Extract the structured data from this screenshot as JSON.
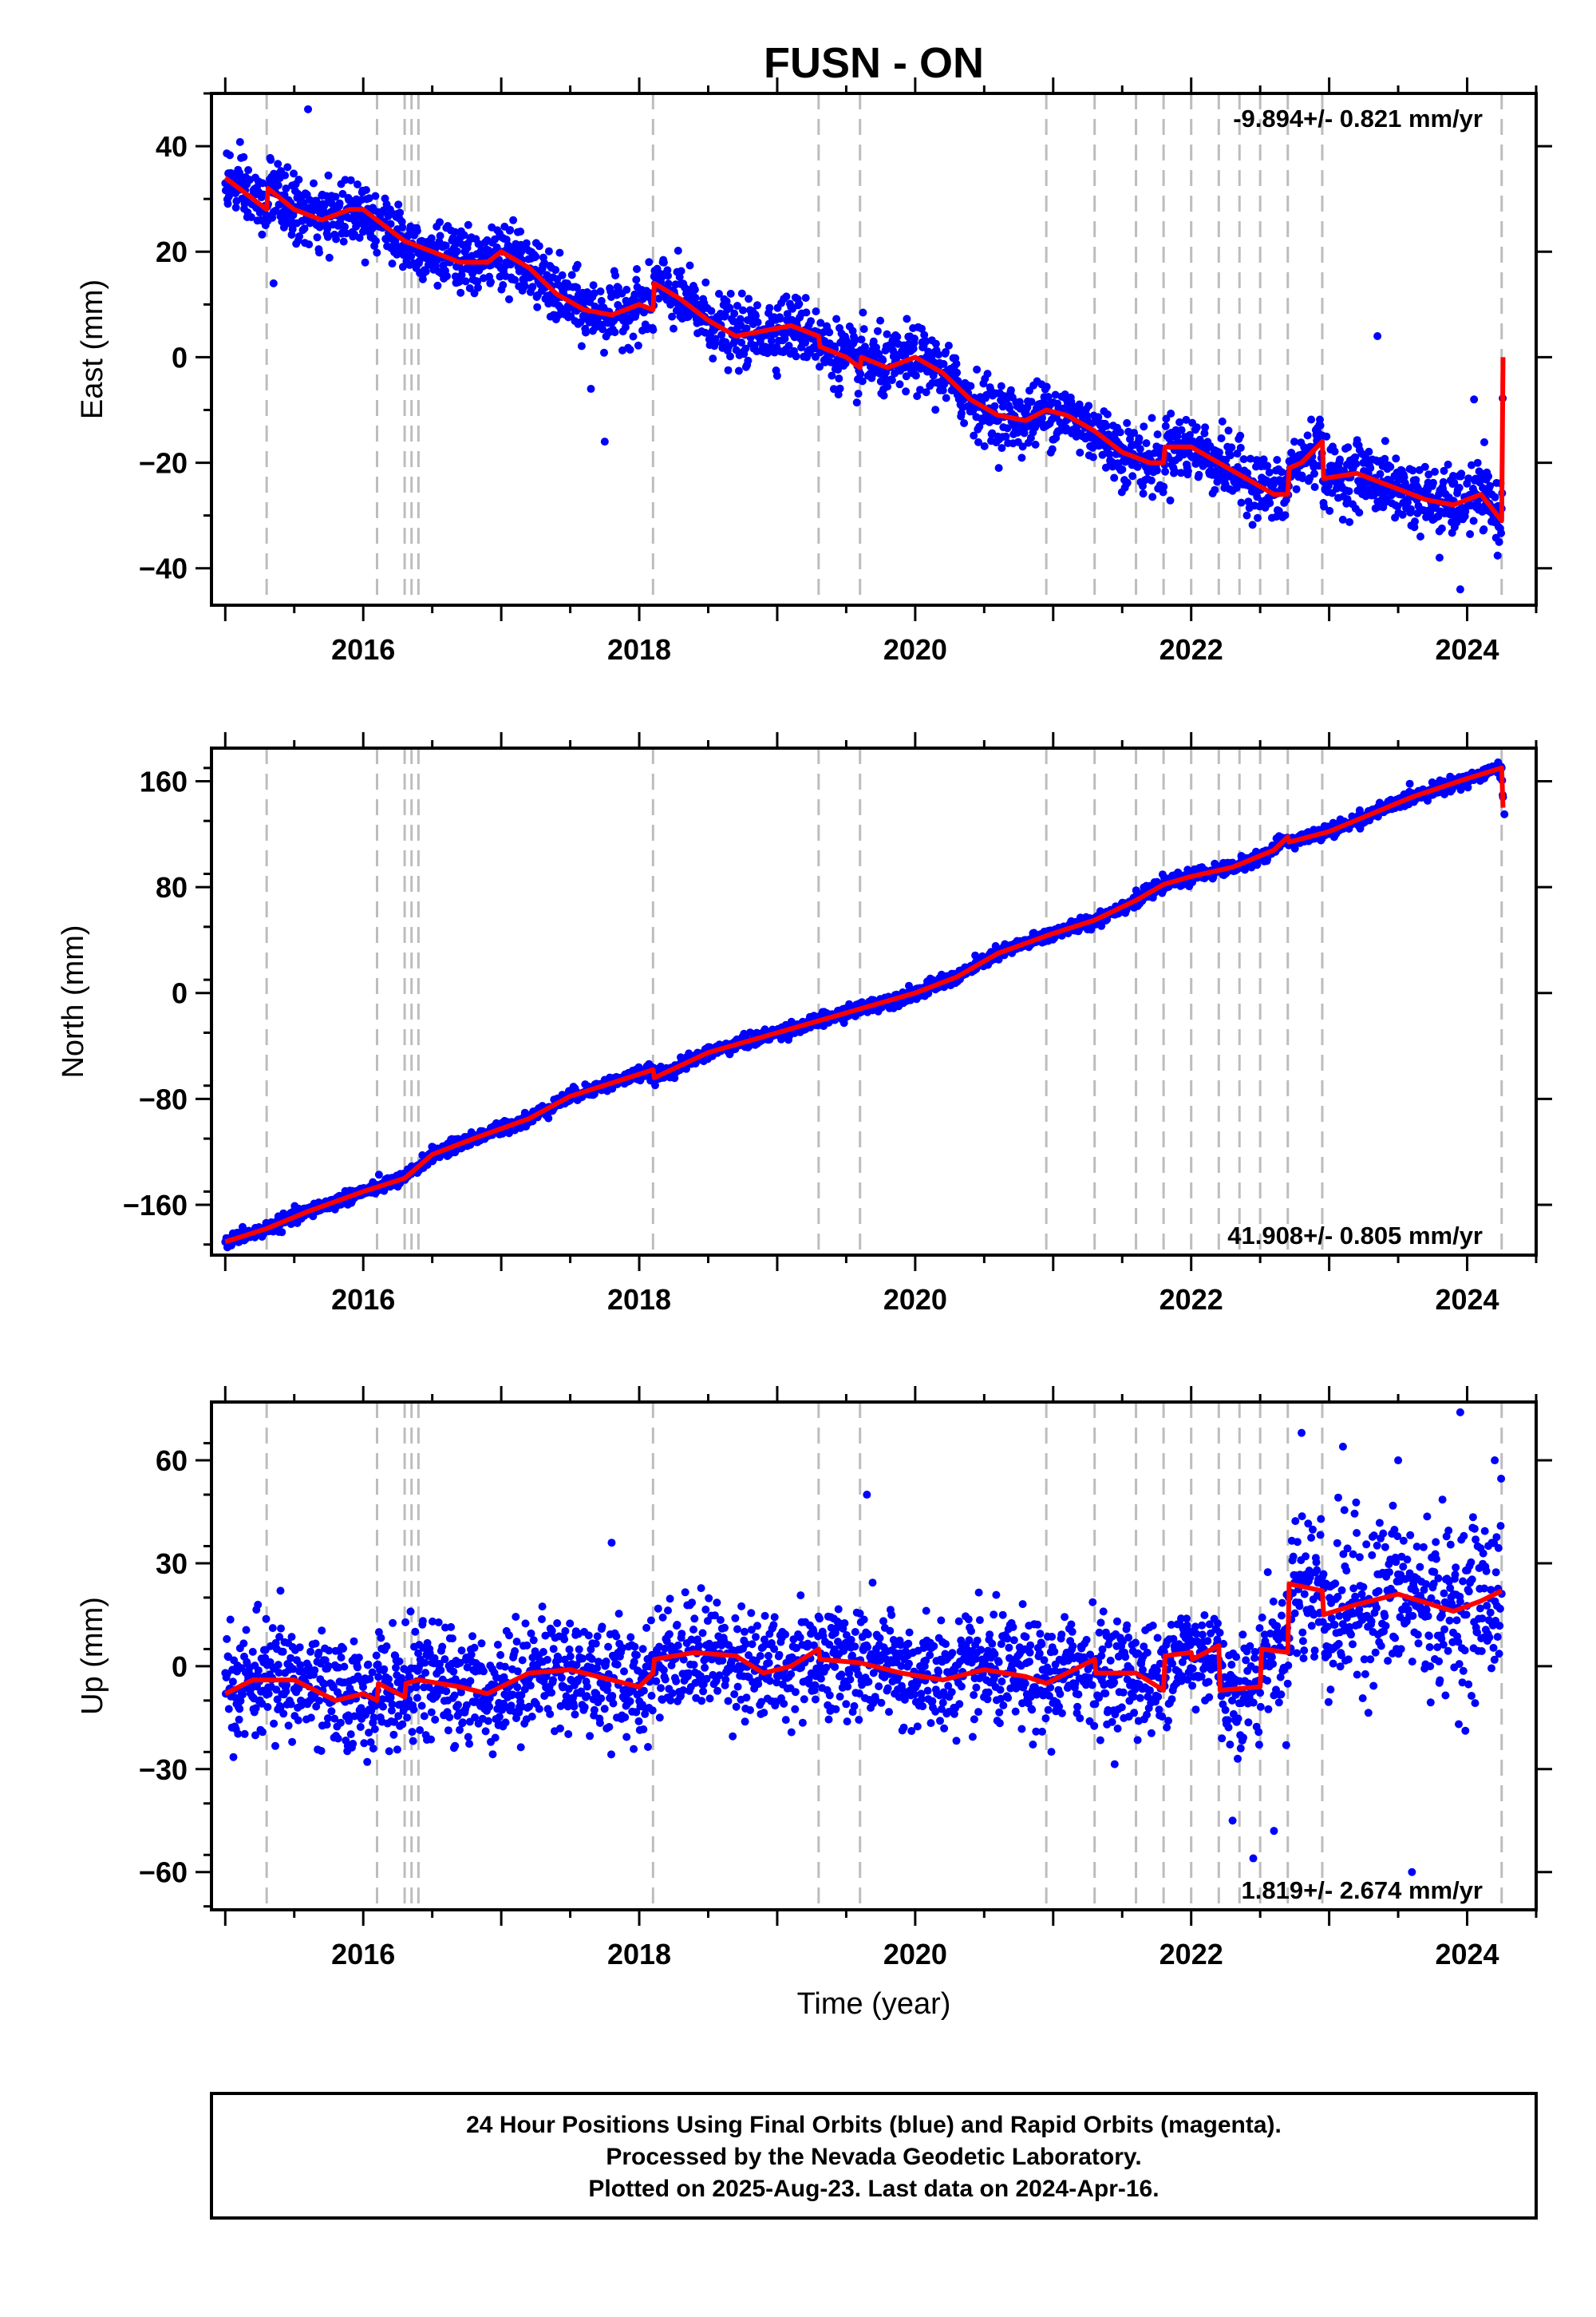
{
  "title": "FUSN - ON",
  "colors": {
    "final_orbits": "#0000ff",
    "model": "#ff0000",
    "event_lines": "#bdbdbd"
  },
  "footer": {
    "line1": "24 Hour Positions Using Final Orbits (blue) and Rapid Orbits (magenta).",
    "line2": "Processed by the Nevada Geodetic Laboratory.",
    "line3": "Plotted on 2025-Aug-23. Last data on 2024-Apr-16."
  },
  "chart_data": [
    {
      "type": "scatter",
      "ylabel": "East (mm)",
      "xlabel": "",
      "rate": "-9.894+/- 0.821 mm/yr",
      "xlim": [
        2014.9,
        2024.5
      ],
      "ylim": [
        -47,
        50
      ],
      "xticks": [
        2016,
        2018,
        2020,
        2022,
        2024
      ],
      "xtick_labels": [
        "2016",
        "2018",
        "2020",
        "2022",
        "2024"
      ],
      "yticks": [
        -40,
        -20,
        0,
        20,
        40
      ],
      "ytick_labels": [
        "−40",
        "−20",
        "0",
        "20",
        "40"
      ],
      "event_lines": [
        2015.3,
        2016.1,
        2016.3,
        2016.35,
        2016.4,
        2018.1,
        2019.3,
        2019.6,
        2020.95,
        2021.3,
        2021.6,
        2021.8,
        2022.0,
        2022.2,
        2022.35,
        2022.5,
        2022.7,
        2022.95,
        2024.25
      ],
      "model": {
        "x": [
          2015.0,
          2015.1,
          2015.25,
          2015.3,
          2015.31,
          2015.5,
          2015.7,
          2015.9,
          2016.0,
          2016.1,
          2016.3,
          2016.5,
          2016.7,
          2016.9,
          2017.0,
          2017.2,
          2017.4,
          2017.6,
          2017.8,
          2018.0,
          2018.1,
          2018.11,
          2018.3,
          2018.5,
          2018.7,
          2018.9,
          2019.1,
          2019.3,
          2019.31,
          2019.5,
          2019.6,
          2019.61,
          2019.8,
          2020.0,
          2020.2,
          2020.4,
          2020.6,
          2020.8,
          2020.95,
          2021.1,
          2021.3,
          2021.5,
          2021.7,
          2021.8,
          2021.81,
          2022.0,
          2022.2,
          2022.4,
          2022.6,
          2022.7,
          2022.71,
          2022.8,
          2022.95,
          2022.96,
          2023.2,
          2023.5,
          2023.7,
          2023.9,
          2024.1,
          2024.25,
          2024.26
        ],
        "y": [
          34,
          32,
          29,
          28,
          32,
          28,
          26,
          28,
          28,
          26,
          22,
          20,
          18,
          18,
          20,
          17,
          12,
          9,
          8,
          10,
          9,
          14,
          11,
          7,
          4,
          5,
          6,
          4,
          2,
          0,
          -2,
          0,
          -2,
          0,
          -3,
          -8,
          -11,
          -12,
          -10,
          -11,
          -14,
          -18,
          -20,
          -20,
          -17,
          -17,
          -20,
          -23,
          -26,
          -26,
          -21,
          -20,
          -16,
          -23,
          -22,
          -25,
          -27,
          -28,
          -26,
          -31,
          0
        ]
      },
      "points": {
        "noise": 3,
        "outliers": [
          [
            2015.6,
            47
          ],
          [
            2015.35,
            14
          ],
          [
            2017.65,
            -6
          ],
          [
            2017.75,
            -16
          ],
          [
            2023.35,
            4
          ],
          [
            2023.8,
            -38
          ],
          [
            2023.95,
            -44
          ],
          [
            2024.05,
            -8
          ]
        ]
      }
    },
    {
      "type": "scatter",
      "ylabel": "North (mm)",
      "xlabel": "",
      "rate": "41.908+/- 0.805 mm/yr",
      "xlim": [
        2014.9,
        2024.5
      ],
      "ylim": [
        -198,
        185
      ],
      "xticks": [
        2016,
        2018,
        2020,
        2022,
        2024
      ],
      "xtick_labels": [
        "2016",
        "2018",
        "2020",
        "2022",
        "2024"
      ],
      "yticks": [
        -160,
        -80,
        0,
        80,
        160
      ],
      "ytick_labels": [
        "−160",
        "−80",
        "0",
        "80",
        "160"
      ],
      "event_lines": [
        2015.3,
        2016.1,
        2016.3,
        2016.35,
        2016.4,
        2018.1,
        2019.3,
        2019.6,
        2020.95,
        2021.3,
        2021.6,
        2021.8,
        2022.0,
        2022.2,
        2022.35,
        2022.5,
        2022.7,
        2022.95,
        2024.25
      ],
      "model": {
        "x": [
          2015.0,
          2015.3,
          2015.6,
          2016.0,
          2016.3,
          2016.5,
          2016.8,
          2017.2,
          2017.5,
          2017.8,
          2018.1,
          2018.11,
          2018.5,
          2019.0,
          2019.5,
          2020.0,
          2020.3,
          2020.6,
          2021.0,
          2021.3,
          2021.6,
          2021.8,
          2022.0,
          2022.3,
          2022.6,
          2022.7,
          2022.71,
          2023.0,
          2023.3,
          2023.6,
          2024.0,
          2024.25,
          2024.26
        ],
        "y": [
          -188,
          -178,
          -165,
          -150,
          -140,
          -122,
          -110,
          -95,
          -78,
          -68,
          -58,
          -64,
          -45,
          -30,
          -15,
          0,
          12,
          30,
          45,
          55,
          70,
          82,
          88,
          95,
          108,
          118,
          114,
          122,
          135,
          148,
          162,
          170,
          140
        ]
      },
      "points": {
        "noise": 2.5,
        "outliers": [
          [
            2024.27,
            135
          ],
          [
            2024.26,
            148
          ]
        ]
      }
    },
    {
      "type": "scatter",
      "ylabel": "Up (mm)",
      "xlabel": "Time (year)",
      "rate": "1.819+/- 2.674 mm/yr",
      "xlim": [
        2014.9,
        2024.5
      ],
      "ylim": [
        -71,
        77
      ],
      "xticks": [
        2016,
        2018,
        2020,
        2022,
        2024
      ],
      "xtick_labels": [
        "2016",
        "2018",
        "2020",
        "2022",
        "2024"
      ],
      "yticks": [
        -60,
        -30,
        0,
        30,
        60
      ],
      "ytick_labels": [
        "−60",
        "−30",
        "0",
        "30",
        "60"
      ],
      "event_lines": [
        2015.3,
        2016.1,
        2016.3,
        2016.35,
        2016.4,
        2018.1,
        2019.3,
        2019.6,
        2020.95,
        2021.3,
        2021.6,
        2021.8,
        2022.0,
        2022.2,
        2022.35,
        2022.5,
        2022.7,
        2022.95,
        2024.25
      ],
      "model": {
        "x": [
          2015.0,
          2015.2,
          2015.5,
          2015.8,
          2016.0,
          2016.1,
          2016.11,
          2016.3,
          2016.31,
          2016.4,
          2016.7,
          2016.9,
          2017.2,
          2017.5,
          2017.8,
          2018.0,
          2018.1,
          2018.11,
          2018.4,
          2018.7,
          2018.9,
          2019.1,
          2019.3,
          2019.31,
          2019.6,
          2019.9,
          2020.2,
          2020.5,
          2020.8,
          2020.95,
          2021.1,
          2021.3,
          2021.31,
          2021.6,
          2021.8,
          2021.81,
          2022.0,
          2022.01,
          2022.2,
          2022.21,
          2022.5,
          2022.51,
          2022.7,
          2022.71,
          2022.95,
          2022.96,
          2023.2,
          2023.5,
          2023.9,
          2024.1,
          2024.25
        ],
        "y": [
          -8,
          -4,
          -4,
          -10,
          -8,
          -10,
          -5,
          -9,
          -5,
          -4,
          -6,
          -8,
          -2,
          -1,
          -4,
          -6,
          -2,
          2,
          4,
          3,
          -2,
          0,
          5,
          2,
          1,
          -2,
          -4,
          -1,
          -3,
          -5,
          -2,
          2,
          -2,
          -2,
          -7,
          3,
          4,
          2,
          6,
          -7,
          -6,
          5,
          4,
          24,
          22,
          15,
          18,
          21,
          16,
          19,
          22
        ]
      },
      "points": {
        "noise": 8,
        "outliers": [
          [
            2015.4,
            22
          ],
          [
            2017.8,
            36
          ],
          [
            2019.65,
            50
          ],
          [
            2022.3,
            -45
          ],
          [
            2022.45,
            -56
          ],
          [
            2022.6,
            -48
          ],
          [
            2023.1,
            64
          ],
          [
            2023.6,
            -60
          ],
          [
            2023.95,
            74
          ],
          [
            2022.8,
            68
          ],
          [
            2023.5,
            60
          ],
          [
            2024.2,
            60
          ]
        ]
      }
    }
  ]
}
